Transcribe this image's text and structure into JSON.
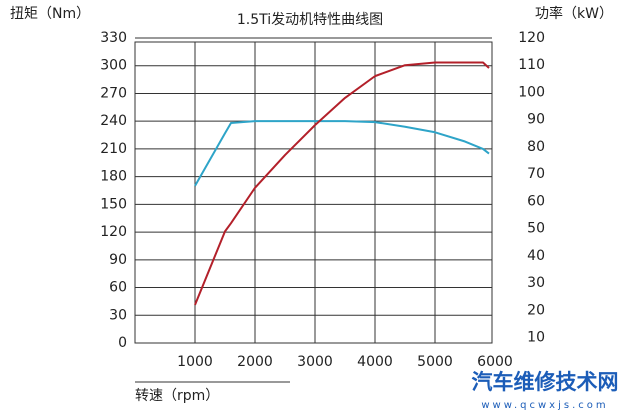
{
  "chart_data": {
    "type": "line",
    "title": "1.5Ti发动机特性曲线图",
    "y_label": "扭矩（Nm）",
    "y2_label": "功率（kW）",
    "x_label": "转速（rpm）",
    "watermark": "汽车维修技术网",
    "watermark_url": "www.qcwxjs.com",
    "x": [
      1000,
      1500,
      1600,
      2000,
      2500,
      3000,
      3500,
      4000,
      4500,
      5000,
      5500,
      5800,
      5900
    ],
    "series": [
      {
        "name": "扭矩",
        "color": "#2ea4c8",
        "values": [
          170,
          227,
          238,
          240,
          240,
          240,
          240,
          239,
          234,
          228,
          218,
          210,
          205
        ]
      },
      {
        "name": "功率",
        "color": "#b3202a",
        "axis": "y2",
        "values": [
          22,
          49,
          52,
          65,
          77,
          88,
          98,
          106,
          110,
          111,
          111,
          111,
          109
        ]
      }
    ],
    "xlim": [
      0,
      6000
    ],
    "xticks": [
      1000,
      2000,
      3000,
      4000,
      5000,
      6000
    ],
    "ylim": [
      0,
      330
    ],
    "yticks": [
      0,
      30,
      60,
      90,
      120,
      150,
      180,
      210,
      240,
      270,
      300,
      330
    ],
    "y2lim": [
      8,
      120
    ],
    "y2ticks": [
      10,
      20,
      30,
      40,
      50,
      60,
      70,
      80,
      90,
      100,
      110,
      120
    ],
    "grid": true
  }
}
